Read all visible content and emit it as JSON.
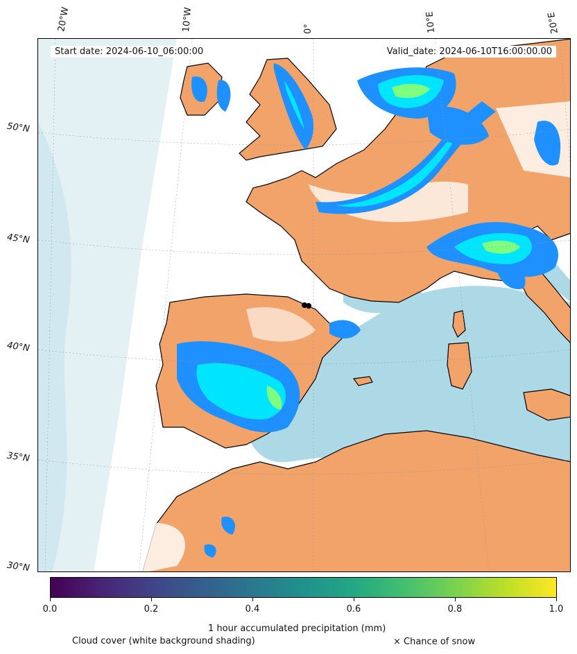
{
  "map": {
    "start_date": "Start date: 2024-06-10_06:00:00",
    "valid_date": "Valid_date: 2024-06-10T16:00:00.00",
    "longitude_labels": [
      "20°W",
      "10°W",
      "0°",
      "10°E",
      "20°E"
    ],
    "latitude_labels": [
      "50°N",
      "45°N",
      "40°N",
      "35°N",
      "30°N"
    ],
    "colors": {
      "land_dry": "#f2a36a",
      "sea_clear": "#add8e6",
      "cloud": "#ffffff",
      "precip_low": "#1e90ff",
      "precip_mid": "#00e5ff",
      "precip_high": "#7fff7f",
      "coastline": "#000000"
    }
  },
  "colorbar": {
    "colormap": "viridis",
    "range": [
      0.0,
      1.0
    ],
    "ticks": [
      "0.0",
      "0.2",
      "0.4",
      "0.6",
      "0.8",
      "1.0"
    ],
    "label": "1 hour accumulated precipitation (mm)"
  },
  "legend": {
    "cloud_note": "Cloud cover (white background shading)",
    "snow_note": "× Chance of snow"
  }
}
